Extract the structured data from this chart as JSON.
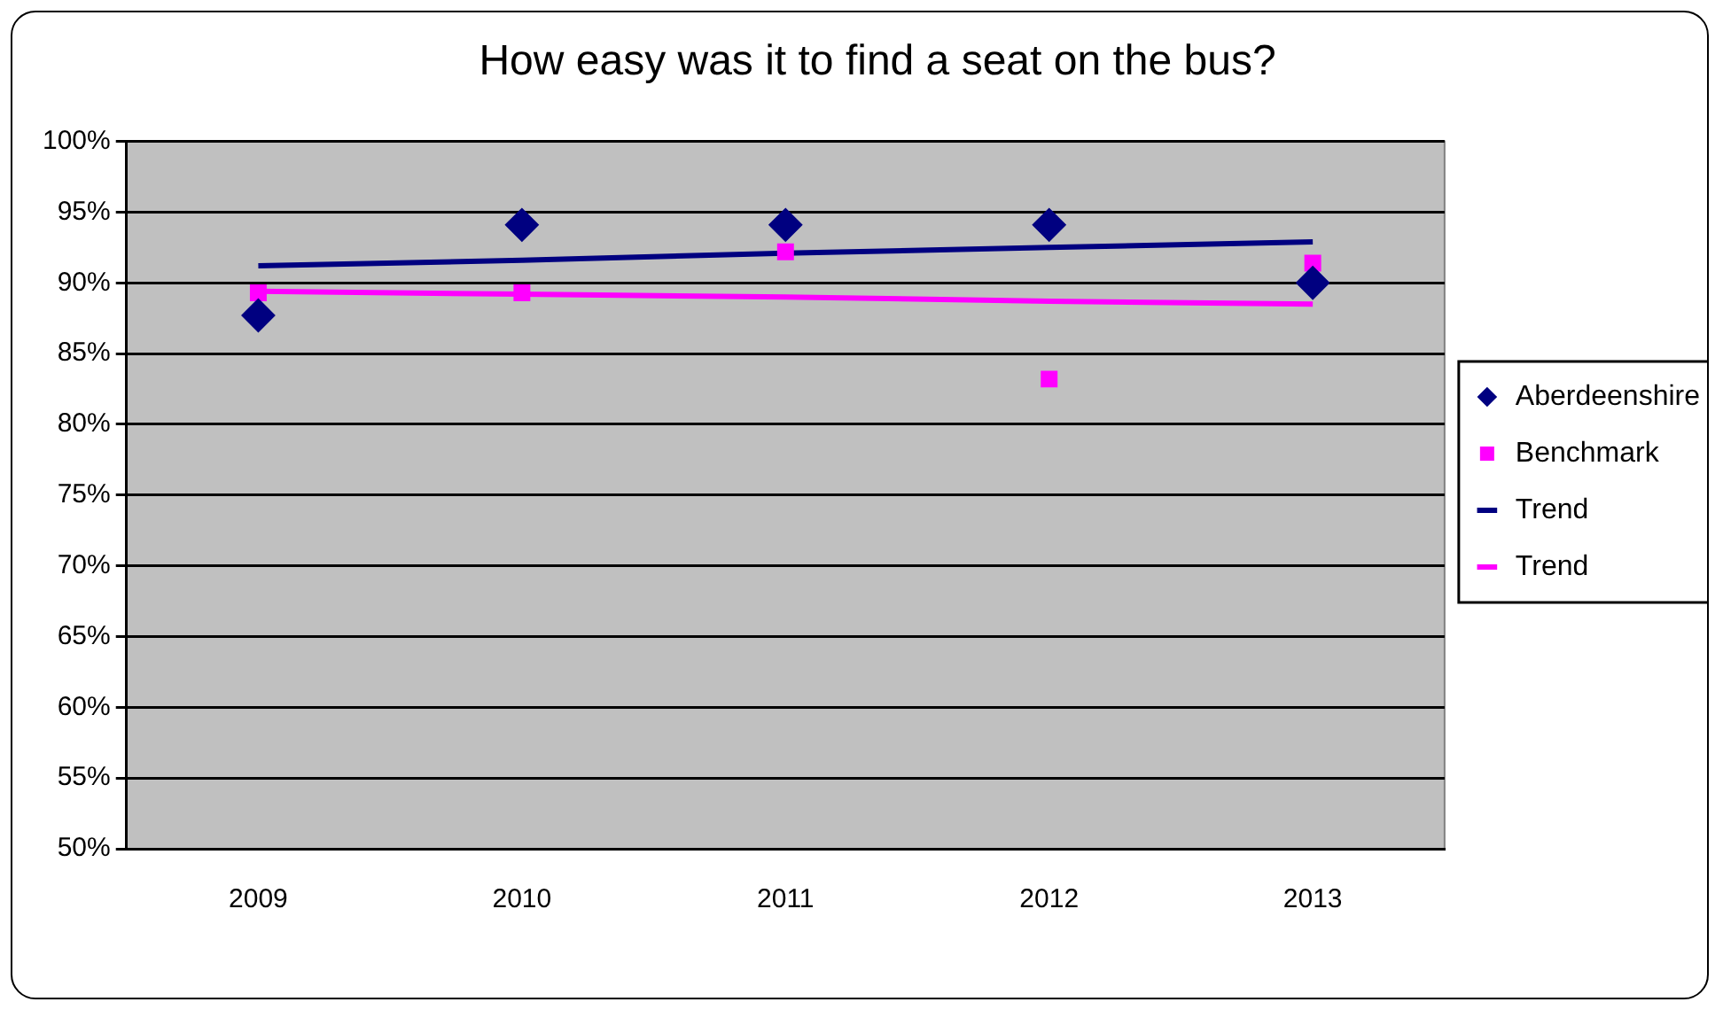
{
  "chart_data": {
    "type": "scatter",
    "title": "How easy was it to find a seat on the bus?",
    "categories": [
      "2009",
      "2010",
      "2011",
      "2012",
      "2013"
    ],
    "series": [
      {
        "name": "Aberdeenshire",
        "marker": "diamond",
        "color": "#000080",
        "values": [
          87.7,
          94.1,
          94.1,
          94.1,
          90
        ]
      },
      {
        "name": "Benchmark",
        "marker": "square",
        "color": "#ff00ff",
        "values": [
          89.3,
          89.3,
          92.2,
          83.2,
          91.4
        ]
      },
      {
        "name": "Trend",
        "type": "line",
        "marker": "none",
        "color": "#000080",
        "values": [
          91.2,
          91.6,
          92.1,
          92.5,
          92.9
        ]
      },
      {
        "name": "Trend",
        "type": "line",
        "marker": "none",
        "color": "#ff00ff",
        "values": [
          89.4,
          89.2,
          89.0,
          88.7,
          88.5
        ]
      }
    ],
    "ylim": [
      50,
      100
    ],
    "yticks": [
      {
        "value": 50,
        "label": "50%"
      },
      {
        "value": 55,
        "label": "55%"
      },
      {
        "value": 60,
        "label": "60%"
      },
      {
        "value": 65,
        "label": "65%"
      },
      {
        "value": 70,
        "label": "70%"
      },
      {
        "value": 75,
        "label": "75%"
      },
      {
        "value": 80,
        "label": "80%"
      },
      {
        "value": 85,
        "label": "85%"
      },
      {
        "value": 90,
        "label": "90%"
      },
      {
        "value": 95,
        "label": "95%"
      },
      {
        "value": 100,
        "label": "100%"
      }
    ],
    "grid": "y",
    "legend": "right"
  }
}
